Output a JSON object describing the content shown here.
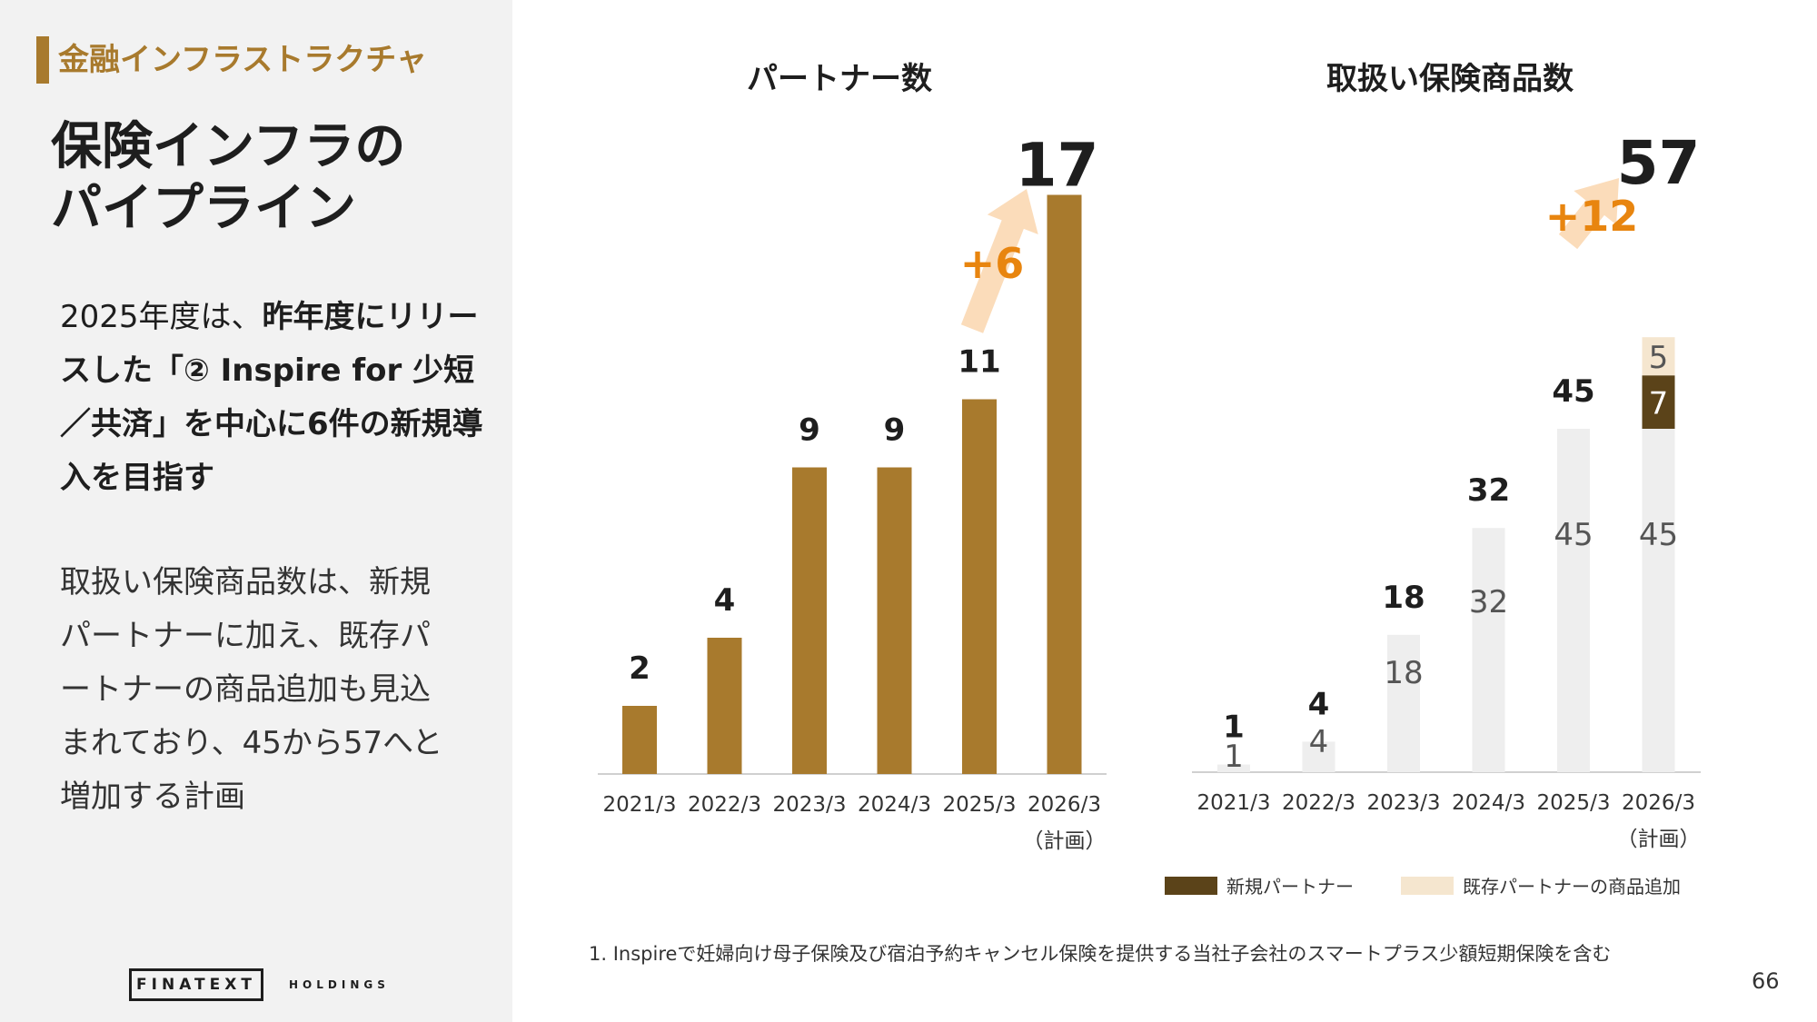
{
  "section_label": "金融インフラストラクチャ",
  "title_lines": [
    "保険インフラの",
    "パイプライン"
  ],
  "paragraph1": {
    "prefix": "2025年度は、",
    "bold": "昨年度にリリースした「② Inspire for 少短／共済」を中心に6件の新規導入を目指す"
  },
  "paragraph2": "取扱い保険商品数は、新規パートナーに加え、既存パートナーの商品追加も見込まれており、45から57へと増加する計画",
  "logo": {
    "main": "FINATEXT",
    "sub": "HOLDINGS"
  },
  "footnote": "1. Inspireで妊婦向け母子保険及び宿泊予約キャンセル保険を提供する当社子会社のスマートプラス少額短期保険を含む",
  "page_number": "66",
  "colors": {
    "gold": "#a87a2d",
    "orange": "#e8850f",
    "arrow": "#fbdcba",
    "gray_bar": "#eeeeee",
    "dark_brown": "#5b4319",
    "cream": "#f5e6cf"
  },
  "chart_data": [
    {
      "type": "bar",
      "title": "パートナー数",
      "categories": [
        "2021/3",
        "2022/3",
        "2023/3",
        "2024/3",
        "2025/3",
        "2026/3"
      ],
      "category_notes": [
        "",
        "",
        "",
        "",
        "",
        "（計画）"
      ],
      "values": [
        2,
        4,
        9,
        9,
        11,
        17
      ],
      "increase_label": "+6"
    },
    {
      "type": "bar",
      "title": "取扱い保険商品数",
      "categories": [
        "2021/3",
        "2022/3",
        "2023/3",
        "2024/3",
        "2025/3",
        "2026/3"
      ],
      "category_notes": [
        "",
        "",
        "",
        "",
        "",
        "（計画）"
      ],
      "series": [
        {
          "values": [
            1,
            4,
            18,
            32,
            45,
            45
          ]
        },
        {
          "name": "新規パートナー",
          "values": [
            0,
            0,
            0,
            0,
            0,
            7
          ]
        },
        {
          "name": "既存パートナーの商品追加",
          "values": [
            0,
            0,
            0,
            0,
            0,
            5
          ]
        }
      ],
      "totals": [
        1,
        4,
        18,
        32,
        45,
        57
      ],
      "increase_label": "+12",
      "legend": [
        "新規パートナー",
        "既存パートナーの商品追加"
      ]
    }
  ]
}
